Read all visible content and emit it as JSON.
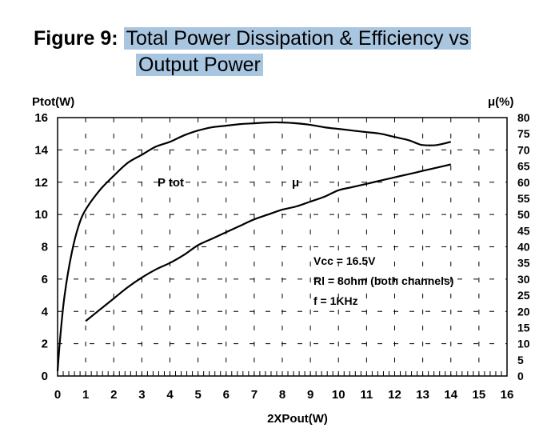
{
  "figure": {
    "label": "Figure 9:",
    "title_line1": "Total Power Dissipation & Efficiency vs",
    "title_line2": "Output Power"
  },
  "chart_data": {
    "type": "line",
    "xlabel": "2XPout(W)",
    "ylabel": "Ptot(W)",
    "y2label": "μ(%)",
    "xlim": [
      0,
      16
    ],
    "ylim": [
      0,
      16
    ],
    "y2lim": [
      0,
      80
    ],
    "xticks": [
      "0",
      "1",
      "2",
      "3",
      "4",
      "5",
      "6",
      "7",
      "8",
      "9",
      "10",
      "11",
      "12",
      "13",
      "14",
      "15",
      "16"
    ],
    "yticks": [
      "0",
      "2",
      "4",
      "6",
      "8",
      "10",
      "12",
      "14",
      "16"
    ],
    "y2ticks": [
      "0",
      "5",
      "10",
      "15",
      "20",
      "25",
      "30",
      "35",
      "40",
      "45",
      "50",
      "55",
      "60",
      "65",
      "70",
      "75",
      "80"
    ],
    "grid": "dashed",
    "series": [
      {
        "name": "P tot",
        "axis": "left",
        "x": [
          0,
          0.1,
          0.25,
          0.5,
          0.75,
          1,
          1.5,
          2,
          2.5,
          3,
          3.5,
          4,
          4.5,
          5,
          5.5,
          6,
          6.5,
          7,
          7.5,
          8,
          8.5,
          9,
          9.5,
          10,
          10.5,
          11,
          11.5,
          12,
          12.5,
          12.8,
          13,
          13.5,
          14
        ],
        "y": [
          0.3,
          2.5,
          5.0,
          7.6,
          9.3,
          10.3,
          11.5,
          12.4,
          13.2,
          13.7,
          14.2,
          14.5,
          14.9,
          15.2,
          15.4,
          15.5,
          15.6,
          15.65,
          15.7,
          15.7,
          15.65,
          15.55,
          15.4,
          15.3,
          15.2,
          15.1,
          15.0,
          14.8,
          14.6,
          14.4,
          14.3,
          14.3,
          14.5
        ]
      },
      {
        "name": "μ",
        "axis": "right",
        "x": [
          1,
          1.5,
          2,
          2.5,
          3,
          3.5,
          4,
          4.5,
          5,
          5.5,
          6,
          6.5,
          7,
          7.5,
          8,
          8.5,
          9,
          9.5,
          10,
          10.5,
          11,
          11.5,
          12,
          12.5,
          13,
          13.5,
          14
        ],
        "y": [
          17,
          20.5,
          24,
          27.5,
          30.5,
          33,
          35,
          37.5,
          40.5,
          42.5,
          44.5,
          46.5,
          48.5,
          50,
          51.5,
          52.5,
          54,
          55.5,
          57.5,
          58.5,
          59.5,
          60.5,
          61.5,
          62.5,
          63.5,
          64.5,
          65.5
        ]
      }
    ],
    "annotations": [
      "Vcc = 16.5V",
      "Rl = 8ohm (both channels)",
      "f = 1KHz"
    ]
  }
}
